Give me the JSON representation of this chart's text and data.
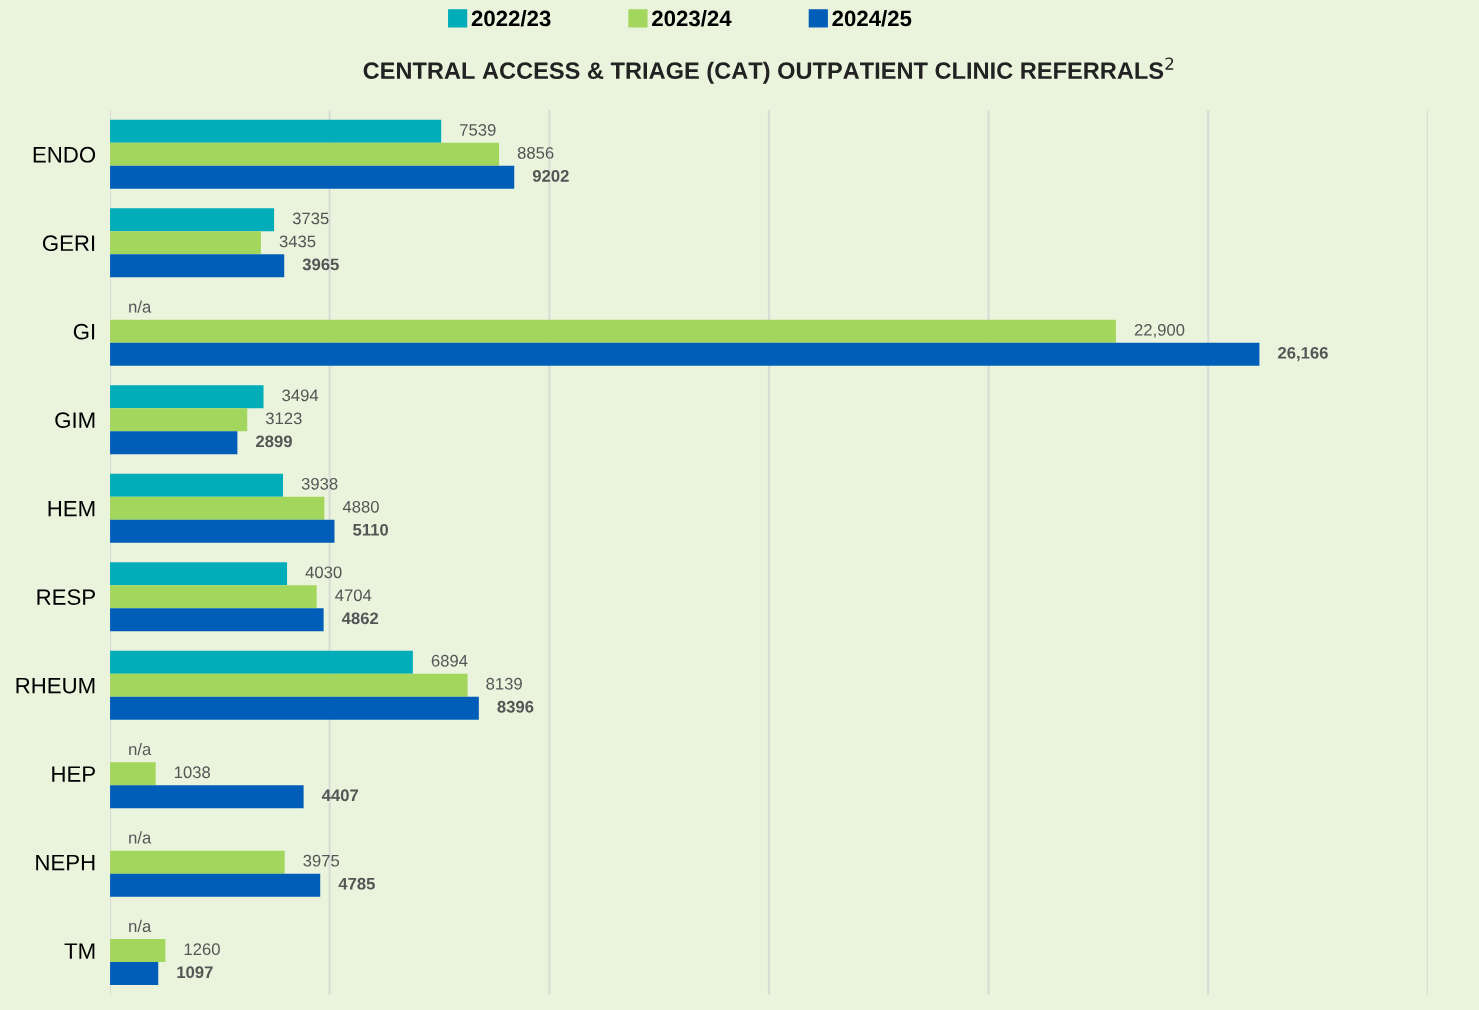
{
  "chart_data": {
    "type": "bar",
    "orientation": "horizontal",
    "title": "CENTRAL ACCESS & TRIAGE (CAT) OUTPATIENT CLINIC REFERRALS$^{2}$",
    "categories": [
      "ENDO",
      "GERI",
      "GI",
      "GIM",
      "HEM",
      "RESP",
      "RHEUM",
      "HEP",
      "NEPH",
      "TM"
    ],
    "series": [
      {
        "name": "2022/23",
        "color": "#00adb9",
        "values": [
          7539,
          3735,
          null,
          3494,
          3938,
          4030,
          6894,
          null,
          null,
          null
        ],
        "value_labels": [
          "7539",
          "3735",
          "n/a",
          "3494",
          "3938",
          "4030",
          "6894",
          "n/a",
          "n/a",
          "n/a"
        ]
      },
      {
        "name": "2023/24",
        "color": "#a3d65c",
        "values": [
          8856,
          3435,
          22900,
          3123,
          4880,
          4704,
          8139,
          1038,
          3975,
          1260
        ],
        "value_labels": [
          "8856",
          "3435",
          "22,900",
          "3123",
          "4880",
          "4704",
          "8139",
          "1038",
          "3975",
          "1260"
        ]
      },
      {
        "name": "2024/25",
        "color": "#005eb8",
        "values": [
          9202,
          3965,
          26166,
          2899,
          5110,
          4862,
          8396,
          4407,
          4785,
          1097
        ],
        "value_labels": [
          "9202",
          "3965",
          "26,166",
          "2899",
          "5110",
          "4862",
          "8396",
          "4407",
          "4785",
          "1097"
        ]
      }
    ],
    "xlim": [
      0,
      30000
    ],
    "xticks": [
      {
        "value": 0,
        "label": null
      },
      {
        "value": 5000,
        "label": null
      },
      {
        "value": 10000,
        "label": null
      },
      {
        "value": 15000,
        "label": null
      },
      {
        "value": 20000,
        "label": null
      },
      {
        "value": 25000,
        "label": null
      },
      {
        "value": 30000,
        "label": null
      }
    ],
    "tick_labels": "y",
    "grid": "x",
    "legend": "top"
  }
}
